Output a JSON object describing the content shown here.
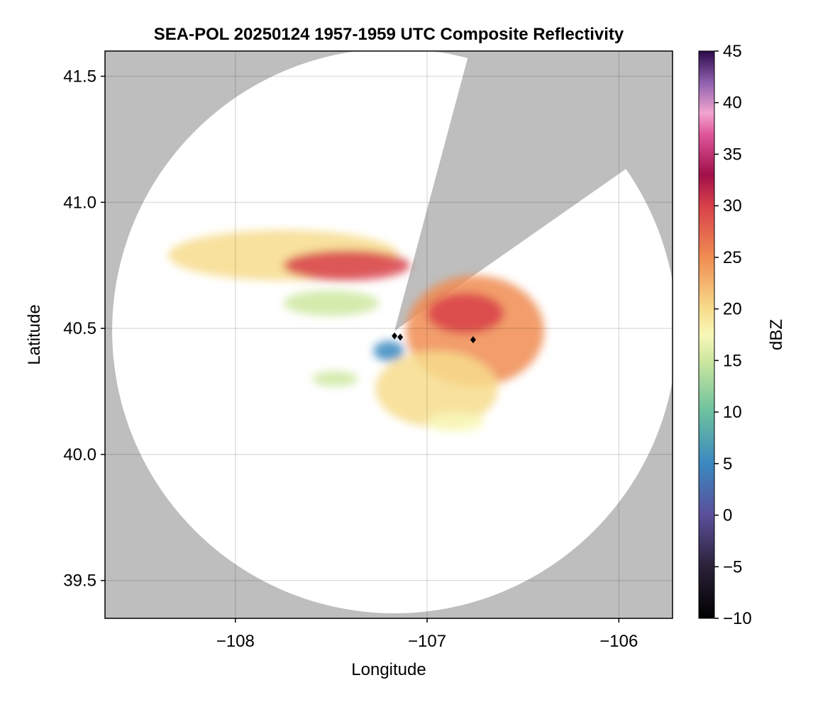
{
  "chart_data": {
    "type": "heatmap",
    "title": "SEA-POL 20250124 1957-1959 UTC Composite Reflectivity",
    "xlabel": "Longitude",
    "ylabel": "Latitude",
    "xlim": [
      -108.68,
      -105.72
    ],
    "ylim": [
      39.35,
      41.6
    ],
    "xticks": [
      -108,
      -107,
      -106
    ],
    "xtick_labels": [
      "−108",
      "−107",
      "−106"
    ],
    "yticks": [
      39.5,
      40.0,
      40.5,
      41.0,
      41.5
    ],
    "ytick_labels": [
      "39.5",
      "40.0",
      "40.5",
      "41.0",
      "41.5"
    ],
    "grid": true,
    "background_color": "#bebebe",
    "radar_site": {
      "lon": -107.17,
      "lat": 40.49
    },
    "radar_range_deg_lat": 1.12,
    "blocked_sectors_deg_from_north": [
      [
        15,
        55
      ]
    ],
    "point_markers": [
      {
        "lon": -106.76,
        "lat": 40.455
      },
      {
        "lon": -107.17,
        "lat": 40.47
      },
      {
        "lon": -107.14,
        "lat": 40.465
      }
    ],
    "echo_regions": [
      {
        "lon": -107.75,
        "lat": 40.79,
        "rx": 0.6,
        "ry": 0.1,
        "dbz": 18
      },
      {
        "lon": -107.42,
        "lat": 40.75,
        "rx": 0.33,
        "ry": 0.06,
        "dbz": 28
      },
      {
        "lon": -107.5,
        "lat": 40.6,
        "rx": 0.25,
        "ry": 0.05,
        "dbz": 15
      },
      {
        "lon": -106.75,
        "lat": 40.49,
        "rx": 0.36,
        "ry": 0.22,
        "dbz": 24
      },
      {
        "lon": -106.8,
        "lat": 40.56,
        "rx": 0.2,
        "ry": 0.08,
        "dbz": 30
      },
      {
        "lon": -106.95,
        "lat": 40.26,
        "rx": 0.32,
        "ry": 0.15,
        "dbz": 19
      },
      {
        "lon": -107.48,
        "lat": 40.3,
        "rx": 0.12,
        "ry": 0.03,
        "dbz": 13
      },
      {
        "lon": -106.85,
        "lat": 40.13,
        "rx": 0.15,
        "ry": 0.04,
        "dbz": 17
      },
      {
        "lon": -107.2,
        "lat": 40.41,
        "rx": 0.08,
        "ry": 0.04,
        "dbz": 2
      }
    ],
    "colorbar": {
      "label": "dBZ",
      "min": -10,
      "max": 45,
      "ticks": [
        -10,
        -5,
        0,
        5,
        10,
        15,
        20,
        25,
        30,
        35,
        40,
        45
      ],
      "tick_labels": [
        "−10",
        "−5",
        "0",
        "5",
        "10",
        "15",
        "20",
        "25",
        "30",
        "35",
        "40",
        "45"
      ],
      "stops": [
        {
          "v": -10,
          "c": "#000000"
        },
        {
          "v": -5,
          "c": "#2a2138"
        },
        {
          "v": 0,
          "c": "#5b4f9a"
        },
        {
          "v": 5,
          "c": "#3a88c0"
        },
        {
          "v": 10,
          "c": "#6cc09f"
        },
        {
          "v": 15,
          "c": "#cde79f"
        },
        {
          "v": 17.5,
          "c": "#f8f8b8"
        },
        {
          "v": 20,
          "c": "#f7dc8c"
        },
        {
          "v": 25,
          "c": "#f08c52"
        },
        {
          "v": 30,
          "c": "#d8404a"
        },
        {
          "v": 33,
          "c": "#a0104a"
        },
        {
          "v": 37,
          "c": "#e0589c"
        },
        {
          "v": 39,
          "c": "#f2a4d0"
        },
        {
          "v": 42,
          "c": "#8e5fae"
        },
        {
          "v": 45,
          "c": "#2c0a4a"
        }
      ]
    }
  }
}
